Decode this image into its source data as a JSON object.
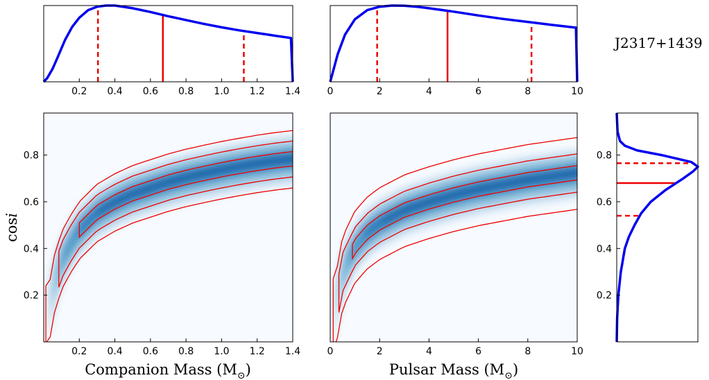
{
  "title": "J2317+1439",
  "chart_data": [
    {
      "id": "mc-marginal",
      "type": "line",
      "xlim": [
        0.0,
        1.4
      ],
      "ylim": [
        0,
        1.0
      ],
      "xticks": [
        "0.2",
        "0.4",
        "0.6",
        "0.8",
        "1.0",
        "1.2",
        "1.4"
      ],
      "xtick_values": [
        0.2,
        0.4,
        0.6,
        0.8,
        1.0,
        1.2,
        1.4
      ],
      "x": [
        0.0,
        0.02,
        0.05,
        0.08,
        0.12,
        0.16,
        0.2,
        0.25,
        0.3,
        0.35,
        0.4,
        0.5,
        0.6,
        0.7,
        0.8,
        0.9,
        1.0,
        1.1,
        1.2,
        1.3,
        1.39,
        1.4
      ],
      "y": [
        0.0,
        0.05,
        0.17,
        0.33,
        0.55,
        0.72,
        0.84,
        0.94,
        0.985,
        1.0,
        1.0,
        0.965,
        0.915,
        0.86,
        0.81,
        0.76,
        0.715,
        0.675,
        0.64,
        0.605,
        0.575,
        0.0
      ],
      "median": 0.67,
      "interval": [
        0.305,
        1.125
      ]
    },
    {
      "id": "mp-marginal",
      "type": "line",
      "xlim": [
        0,
        10
      ],
      "ylim": [
        0,
        1.0
      ],
      "xticks": [
        "0",
        "2",
        "4",
        "6",
        "8",
        "10"
      ],
      "xtick_values": [
        0,
        2,
        4,
        6,
        8,
        10
      ],
      "x": [
        0.0,
        0.1,
        0.3,
        0.6,
        1.0,
        1.5,
        2.0,
        2.5,
        3.0,
        3.5,
        4.0,
        5.0,
        6.0,
        7.0,
        8.0,
        9.0,
        9.95,
        10.0
      ],
      "y": [
        0.0,
        0.12,
        0.36,
        0.62,
        0.82,
        0.94,
        0.985,
        1.0,
        0.998,
        0.985,
        0.965,
        0.92,
        0.87,
        0.825,
        0.785,
        0.745,
        0.71,
        0.0
      ],
      "median": 4.75,
      "interval": [
        1.9,
        8.15
      ]
    },
    {
      "id": "mc-cosi-joint",
      "type": "heatmap",
      "xlabel": "Companion Mass (M",
      "xlabel_sub": "⊙",
      "xlabel_close": ")",
      "ylabel": "cos",
      "ylabel_italic": "i",
      "xlim": [
        0.0,
        1.4
      ],
      "ylim": [
        0.0,
        0.98
      ],
      "xticks": [
        "0.2",
        "0.4",
        "0.6",
        "0.8",
        "1.0",
        "1.2",
        "1.4"
      ],
      "xtick_values": [
        0.2,
        0.4,
        0.6,
        0.8,
        1.0,
        1.2,
        1.4
      ],
      "yticks": [
        "0.2",
        "0.4",
        "0.6",
        "0.8"
      ],
      "ytick_values": [
        0.2,
        0.4,
        0.6,
        0.8
      ],
      "ridge_x": [
        0.03,
        0.06,
        0.1,
        0.15,
        0.2,
        0.3,
        0.4,
        0.5,
        0.6,
        0.7,
        0.8,
        0.9,
        1.0,
        1.1,
        1.2,
        1.3,
        1.4
      ],
      "ridge_y": [
        0.12,
        0.25,
        0.35,
        0.42,
        0.48,
        0.555,
        0.6,
        0.635,
        0.66,
        0.685,
        0.705,
        0.722,
        0.738,
        0.752,
        0.765,
        0.776,
        0.785
      ],
      "ridge_x_offset": 0.015,
      "contour_offsets": [
        0.03,
        0.075,
        0.12
      ],
      "contour_starts": [
        0.2,
        0.085,
        0.012
      ]
    },
    {
      "id": "mp-cosi-joint",
      "type": "heatmap",
      "xlabel": "Pulsar Mass (M",
      "xlabel_sub": "⊙",
      "xlabel_close": ")",
      "xlim": [
        0,
        10
      ],
      "ylim": [
        0.0,
        0.98
      ],
      "xticks": [
        "0",
        "2",
        "4",
        "6",
        "8",
        "10"
      ],
      "xtick_values": [
        0,
        2,
        4,
        6,
        8,
        10
      ],
      "ridge_x": [
        0.2,
        0.5,
        1.0,
        1.5,
        2.0,
        3.0,
        4.0,
        5.0,
        6.0,
        7.0,
        8.0,
        9.0,
        10.0
      ],
      "ridge_y": [
        0.12,
        0.3,
        0.41,
        0.47,
        0.51,
        0.565,
        0.6,
        0.63,
        0.655,
        0.675,
        0.695,
        0.71,
        0.725
      ],
      "ridge_x_offset": 0.12,
      "contour_offsets": [
        0.03,
        0.08,
        0.15
      ],
      "contour_starts": [
        0.9,
        0.35,
        0.12
      ]
    },
    {
      "id": "cosi-marginal",
      "type": "line",
      "orientation": "horizontal",
      "ylim": [
        0.0,
        0.98
      ],
      "xlim": [
        0,
        1.0
      ],
      "yticks": [
        "0.2",
        "0.4",
        "0.6",
        "0.8"
      ],
      "ytick_values": [
        0.2,
        0.4,
        0.6,
        0.8
      ],
      "y": [
        0.0,
        0.1,
        0.2,
        0.3,
        0.4,
        0.45,
        0.5,
        0.55,
        0.6,
        0.65,
        0.7,
        0.73,
        0.75,
        0.77,
        0.8,
        0.82,
        0.84,
        0.86,
        0.9,
        0.98
      ],
      "x": [
        0.0,
        0.005,
        0.02,
        0.05,
        0.1,
        0.15,
        0.22,
        0.3,
        0.42,
        0.6,
        0.82,
        0.94,
        1.0,
        0.92,
        0.55,
        0.25,
        0.1,
        0.04,
        0.01,
        0.0
      ],
      "median": 0.68,
      "interval": [
        0.54,
        0.765
      ]
    }
  ]
}
